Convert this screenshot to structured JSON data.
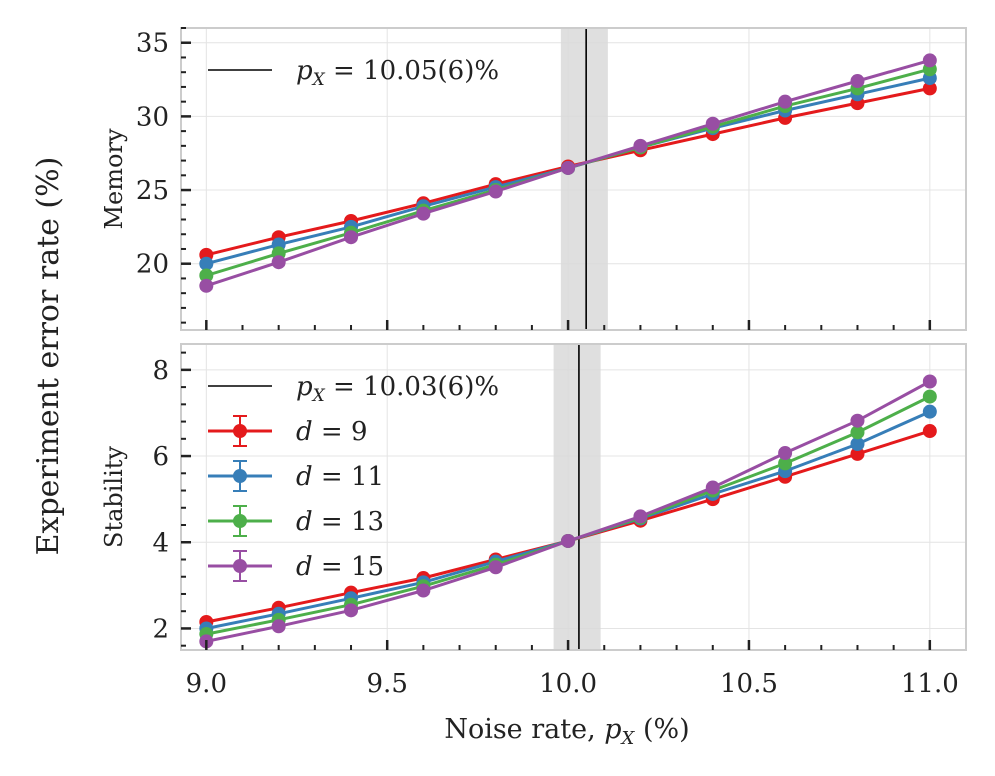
{
  "chart_data": {
    "type": "line",
    "shared_ylabel": "Experiment error rate (%)",
    "xlabel": "Noise rate, p_X (%)",
    "xlabel_parts": [
      "Noise rate, ",
      "p",
      "X",
      " (%)"
    ],
    "xlim": [
      8.93,
      11.1
    ],
    "xticks": [
      9.0,
      9.5,
      10.0,
      10.5,
      11.0
    ],
    "xtick_labels": [
      "9.0",
      "9.5",
      "10.0",
      "10.5",
      "11.0"
    ],
    "x": [
      9.0,
      9.2,
      9.4,
      9.6,
      9.8,
      10.0,
      10.2,
      10.4,
      10.6,
      10.8,
      11.0
    ],
    "grid": true,
    "colors": {
      "d9": "#e41a1c",
      "d11": "#377eb8",
      "d13": "#4daf4a",
      "d15": "#984ea3",
      "threshold": "#000000",
      "band": "#d9d9d9"
    },
    "panels": [
      {
        "ylabel": "Memory",
        "ylim": [
          15.5,
          36.0
        ],
        "yticks": [
          20,
          25,
          30,
          35
        ],
        "threshold": {
          "value": 10.05,
          "band": [
            9.98,
            10.11
          ],
          "label": "p_X = 10.05(6)%",
          "label_parts": [
            "p",
            "X",
            " = 10.05(6)%"
          ]
        },
        "series": [
          {
            "name": "d = 9",
            "color": "#e41a1c",
            "values": [
              20.6,
              21.8,
              22.9,
              24.1,
              25.4,
              26.6,
              27.7,
              28.8,
              29.9,
              30.9,
              31.9
            ]
          },
          {
            "name": "d = 11",
            "color": "#377eb8",
            "values": [
              20.0,
              21.3,
              22.5,
              23.9,
              25.2,
              26.5,
              27.9,
              29.2,
              30.4,
              31.5,
              32.6
            ]
          },
          {
            "name": "d = 13",
            "color": "#4daf4a",
            "values": [
              19.2,
              20.7,
              22.1,
              23.6,
              25.0,
              26.5,
              27.9,
              29.3,
              30.7,
              31.9,
              33.2
            ]
          },
          {
            "name": "d = 15",
            "color": "#984ea3",
            "values": [
              18.5,
              20.1,
              21.8,
              23.4,
              24.9,
              26.5,
              28.0,
              29.5,
              31.0,
              32.4,
              33.8
            ]
          }
        ]
      },
      {
        "ylabel": "Stability",
        "ylim": [
          1.5,
          8.6
        ],
        "yticks": [
          2,
          4,
          6,
          8
        ],
        "threshold": {
          "value": 10.03,
          "band": [
            9.96,
            10.09
          ],
          "label": "p_X = 10.03(6)%",
          "label_parts": [
            "p",
            "X",
            " = 10.03(6)%"
          ]
        },
        "series": [
          {
            "name": "d = 9",
            "color": "#e41a1c",
            "values": [
              2.15,
              2.48,
              2.83,
              3.17,
              3.6,
              4.03,
              4.5,
              5.0,
              5.52,
              6.05,
              6.58
            ]
          },
          {
            "name": "d = 11",
            "color": "#377eb8",
            "values": [
              2.0,
              2.34,
              2.7,
              3.07,
              3.55,
              4.03,
              4.55,
              5.12,
              5.65,
              6.28,
              7.03
            ]
          },
          {
            "name": "d = 13",
            "color": "#4daf4a",
            "values": [
              1.87,
              2.2,
              2.55,
              2.98,
              3.48,
              4.03,
              4.57,
              5.2,
              5.83,
              6.55,
              7.38
            ]
          },
          {
            "name": "d = 15",
            "color": "#984ea3",
            "values": [
              1.7,
              2.05,
              2.42,
              2.88,
              3.42,
              4.03,
              4.6,
              5.27,
              6.07,
              6.82,
              7.73
            ]
          }
        ]
      }
    ],
    "legend_panel": 1,
    "legend_position": "upper-left",
    "legend": [
      {
        "name": "d = 9",
        "color": "#e41a1c",
        "parts": [
          "d",
          " = 9"
        ]
      },
      {
        "name": "d = 11",
        "color": "#377eb8",
        "parts": [
          "d",
          " = 11"
        ]
      },
      {
        "name": "d = 13",
        "color": "#4daf4a",
        "parts": [
          "d",
          " = 13"
        ]
      },
      {
        "name": "d = 15",
        "color": "#984ea3",
        "parts": [
          "d",
          " = 15"
        ]
      }
    ]
  }
}
